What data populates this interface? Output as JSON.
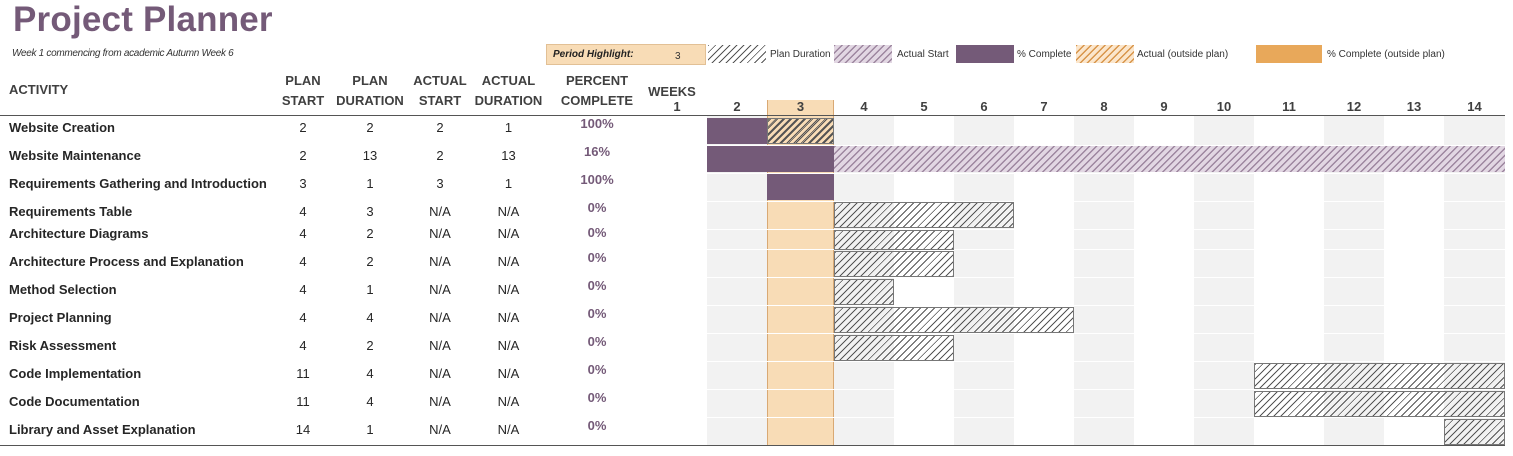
{
  "title": "Project Planner",
  "subtitle": "Week 1 commencing from academic Autumn Week 6",
  "period_highlight": {
    "label": "Period Highlight:",
    "value": "3"
  },
  "legend": [
    {
      "label": "Plan Duration",
      "style": "plan"
    },
    {
      "label": "Actual Start",
      "style": "actual"
    },
    {
      "label": "% Complete",
      "style": "complete"
    },
    {
      "label": "Actual (outside plan)",
      "style": "outside"
    },
    {
      "label": "% Complete (outside plan)",
      "style": "complete-out"
    }
  ],
  "headers": {
    "activity": "ACTIVITY",
    "plan_start_1": "PLAN",
    "plan_start_2": "START",
    "plan_duration_1": "PLAN",
    "plan_duration_2": "DURATION",
    "actual_start_1": "ACTUAL",
    "actual_start_2": "START",
    "actual_duration_1": "ACTUAL",
    "actual_duration_2": "DURATION",
    "percent_1": "PERCENT",
    "percent_2": "COMPLETE",
    "weeks": "WEEKS"
  },
  "weeks": [
    "1",
    "2",
    "3",
    "4",
    "5",
    "6",
    "7",
    "8",
    "9",
    "10",
    "11",
    "12",
    "13",
    "14"
  ],
  "colors": {
    "accent": "#745a78",
    "highlight": "#f8dcb6",
    "outside": "#e8a85a"
  },
  "activities": [
    {
      "name": "Website Creation",
      "plan_start": "2",
      "plan_duration": "2",
      "actual_start": "2",
      "actual_duration": "1",
      "percent": "100%"
    },
    {
      "name": "Website Maintenance",
      "plan_start": "2",
      "plan_duration": "13",
      "actual_start": "2",
      "actual_duration": "13",
      "percent": "16%"
    },
    {
      "name": "Requirements Gathering and Introduction",
      "plan_start": "3",
      "plan_duration": "1",
      "actual_start": "3",
      "actual_duration": "1",
      "percent": "100%"
    },
    {
      "name": "Requirements Table",
      "plan_start": "4",
      "plan_duration": "3",
      "actual_start": "N/A",
      "actual_duration": "N/A",
      "percent": "0%"
    },
    {
      "name": "Architecture Diagrams",
      "plan_start": "4",
      "plan_duration": "2",
      "actual_start": "N/A",
      "actual_duration": "N/A",
      "percent": "0%"
    },
    {
      "name": "Architecture Process and Explanation",
      "plan_start": "4",
      "plan_duration": "2",
      "actual_start": "N/A",
      "actual_duration": "N/A",
      "percent": "0%"
    },
    {
      "name": "Method Selection",
      "plan_start": "4",
      "plan_duration": "1",
      "actual_start": "N/A",
      "actual_duration": "N/A",
      "percent": "0%"
    },
    {
      "name": "Project Planning",
      "plan_start": "4",
      "plan_duration": "4",
      "actual_start": "N/A",
      "actual_duration": "N/A",
      "percent": "0%"
    },
    {
      "name": "Risk Assessment",
      "plan_start": "4",
      "plan_duration": "2",
      "actual_start": "N/A",
      "actual_duration": "N/A",
      "percent": "0%"
    },
    {
      "name": "Code Implementation",
      "plan_start": "11",
      "plan_duration": "4",
      "actual_start": "N/A",
      "actual_duration": "N/A",
      "percent": "0%"
    },
    {
      "name": "Code Documentation",
      "plan_start": "11",
      "plan_duration": "4",
      "actual_start": "N/A",
      "actual_duration": "N/A",
      "percent": "0%"
    },
    {
      "name": "Library and Asset Explanation",
      "plan_start": "14",
      "plan_duration": "1",
      "actual_start": "N/A",
      "actual_duration": "N/A",
      "percent": "0%"
    }
  ]
}
